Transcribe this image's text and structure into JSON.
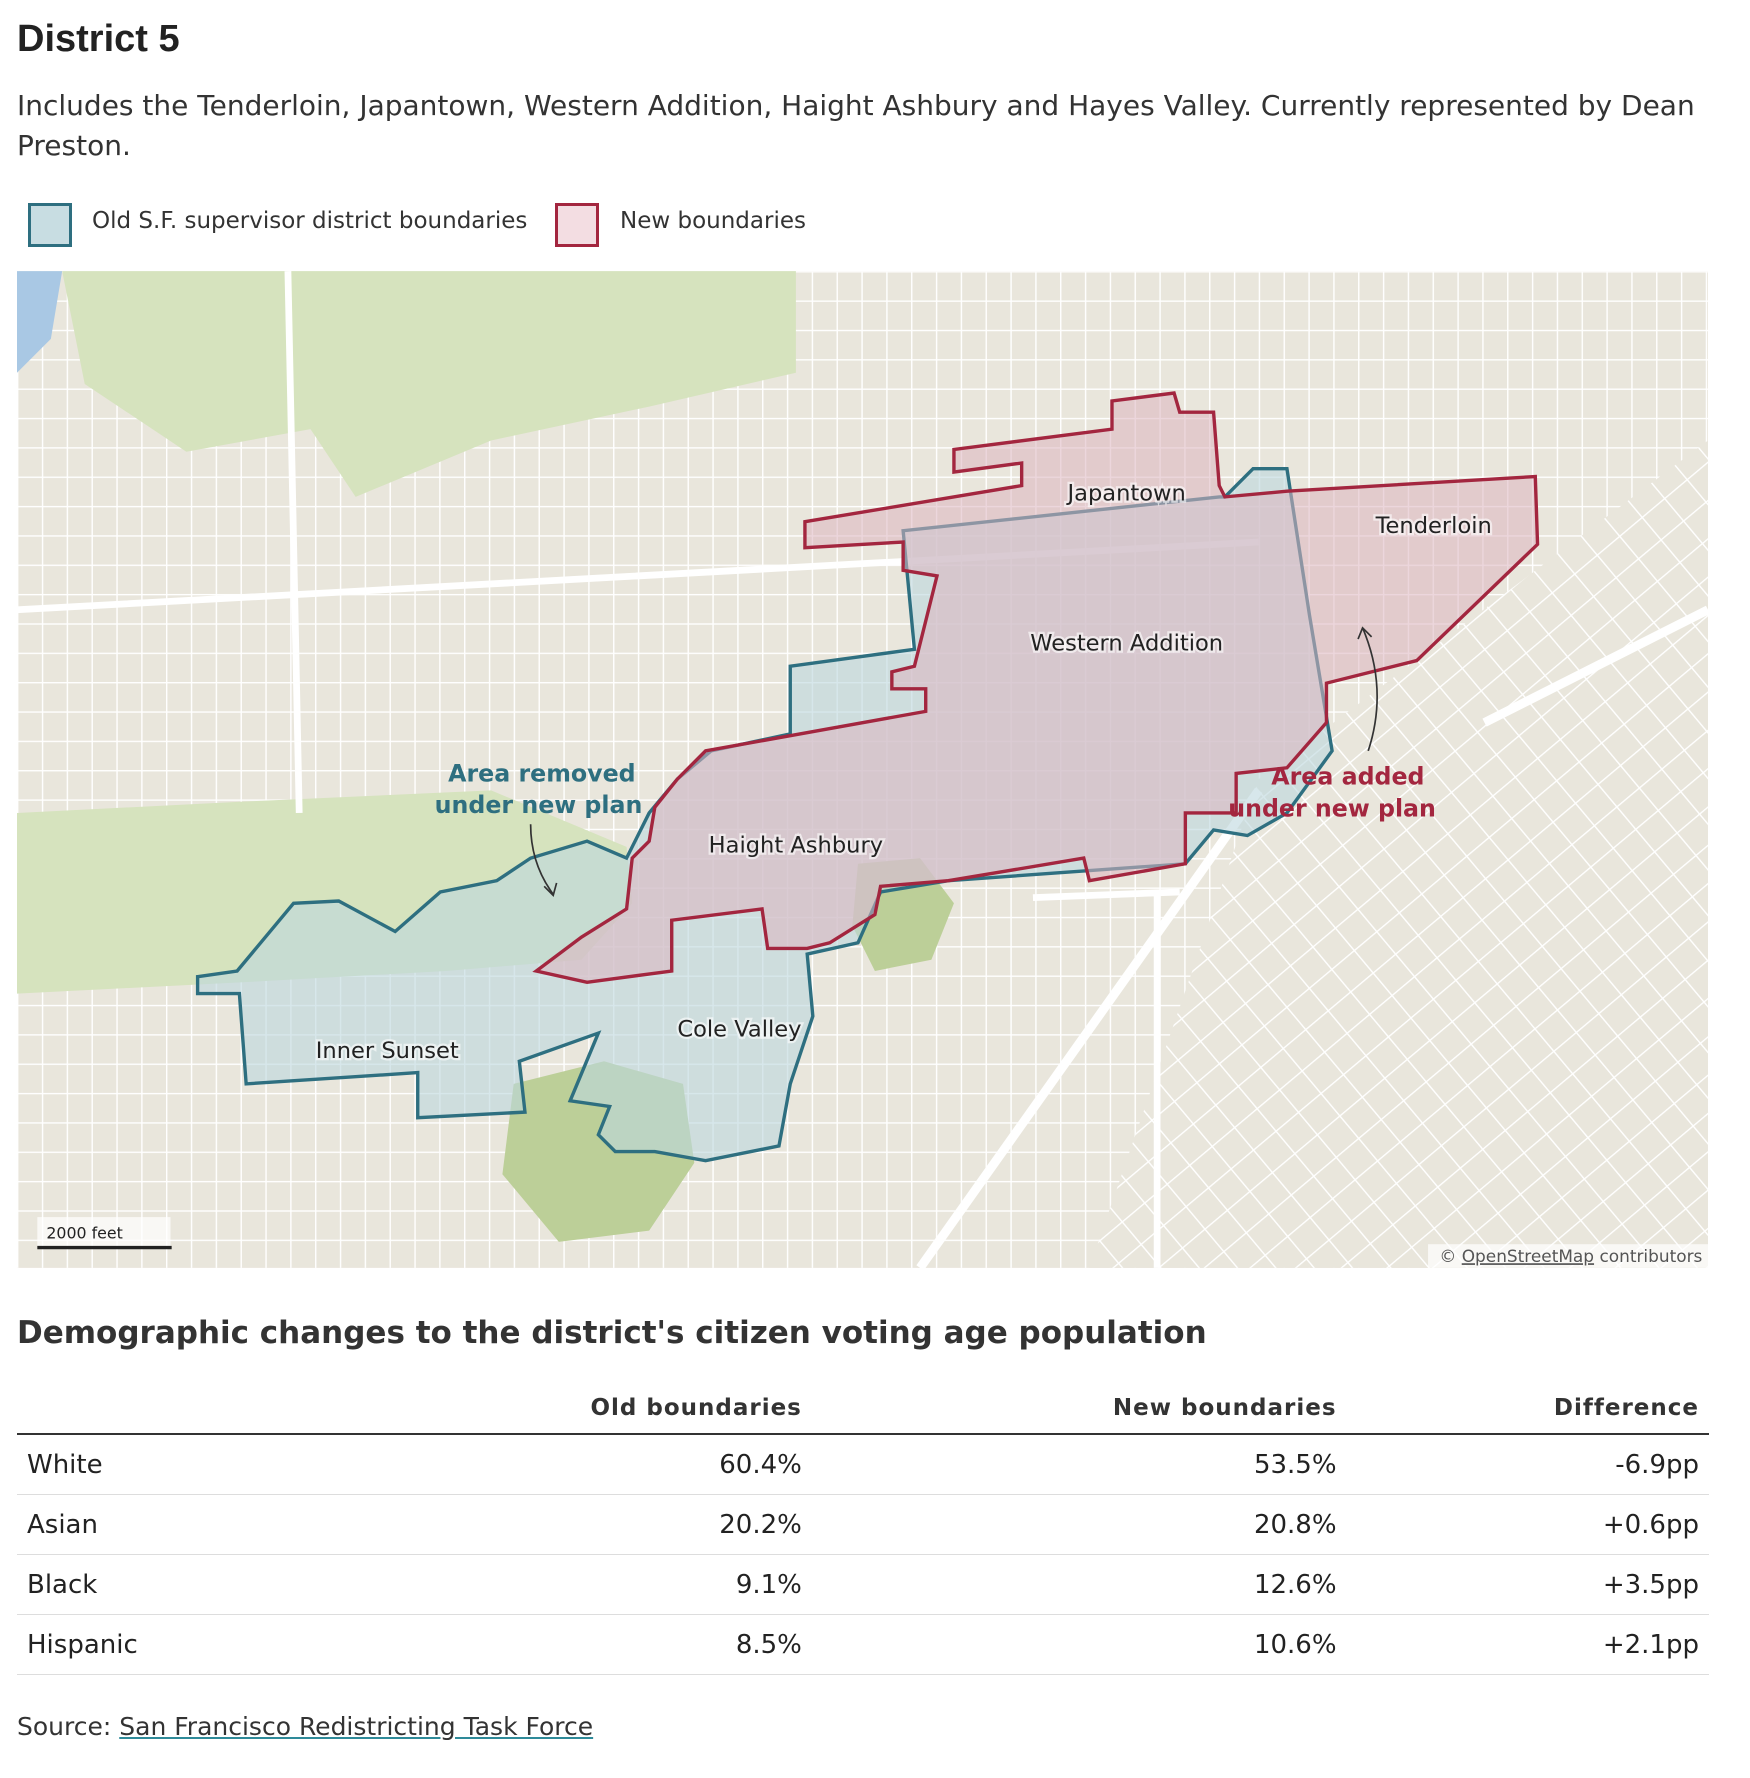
{
  "header": {
    "title": "District 5",
    "description": "Includes the Tenderloin, Japantown, Western Addition, Haight Ashbury and Hayes Valley. Currently represented by Dean Preston."
  },
  "legend": {
    "old": "Old S.F. supervisor district boundaries",
    "new": "New boundaries"
  },
  "map": {
    "labels": [
      "Japantown",
      "Tenderloin",
      "Western Addition",
      "Haight Ashbury",
      "Cole Valley",
      "Inner Sunset"
    ],
    "annotation_removed": [
      "Area removed",
      "under new plan"
    ],
    "annotation_added": [
      "Area added",
      "under new plan"
    ],
    "scale": "2000 feet",
    "attribution": {
      "symbol": "©",
      "link": "OpenStreetMap",
      "text": "contributors"
    }
  },
  "table": {
    "title": "Demographic changes to the district's citizen voting age population",
    "columns": [
      "Old boundaries",
      "New boundaries",
      "Difference"
    ],
    "rows": [
      [
        "White",
        "60.4%",
        "53.5%",
        "-6.9pp"
      ],
      [
        "Asian",
        "20.2%",
        "20.8%",
        "+0.6pp"
      ],
      [
        "Black",
        "9.1%",
        "12.6%",
        "+3.5pp"
      ],
      [
        "Hispanic",
        "8.5%",
        "10.6%",
        "+2.1pp"
      ]
    ]
  },
  "source": {
    "label": "Source:",
    "link": "San Francisco Redistricting Task Force"
  }
}
